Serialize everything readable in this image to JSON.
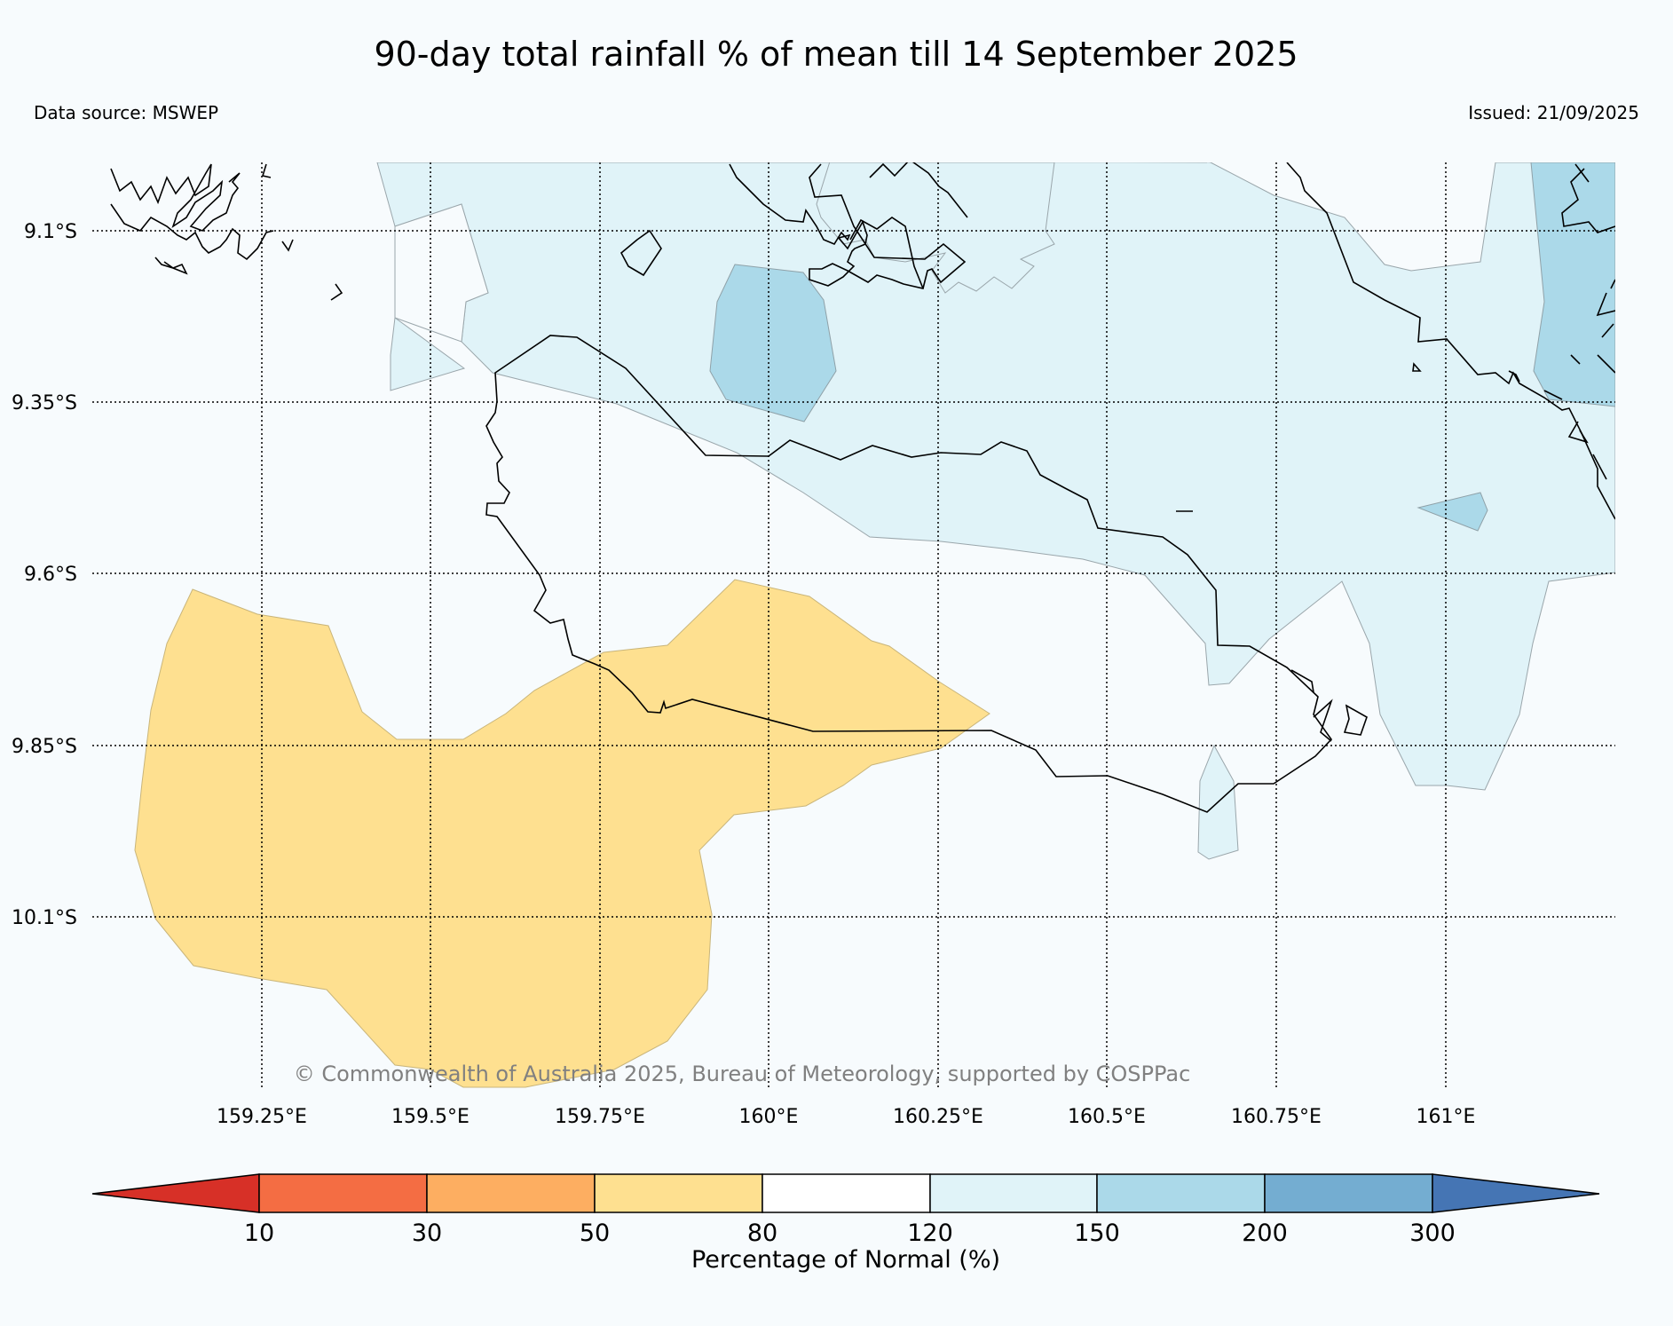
{
  "title": "90-day total rainfall % of mean till 14 September 2025",
  "data_source": "Data source: MSWEP",
  "issued": "Issued: 21/09/2025",
  "copyright": "© Commonwealth of Australia 2025, Bureau of Meteorology, supported by COSPPac",
  "map": {
    "lat_labels": [
      "9.1°S",
      "9.35°S",
      "9.6°S",
      "9.85°S",
      "10.1°S"
    ],
    "lon_labels": [
      "159.25°E",
      "159.5°E",
      "159.75°E",
      "160°E",
      "160.25°E",
      "160.5°E",
      "160.75°E",
      "161°E"
    ],
    "lat_values": [
      -9.1,
      -9.35,
      -9.6,
      -9.85,
      -10.1
    ],
    "lon_values": [
      159.25,
      159.5,
      159.75,
      160.0,
      160.25,
      160.5,
      160.75,
      161.0
    ]
  },
  "colorbar": {
    "label": "Percentage of Normal (%)",
    "ticks": [
      "10",
      "30",
      "50",
      "80",
      "120",
      "150",
      "200",
      "300"
    ],
    "colors": {
      "below_10": "#d73027",
      "10_30": "#f46d43",
      "30_50": "#fdae61",
      "50_80": "#fee090",
      "80_120": "#ffffff",
      "120_150": "#e0f3f8",
      "150_200": "#abd9e9",
      "200_300": "#74add1",
      "above_300": "#4575b4"
    }
  }
}
